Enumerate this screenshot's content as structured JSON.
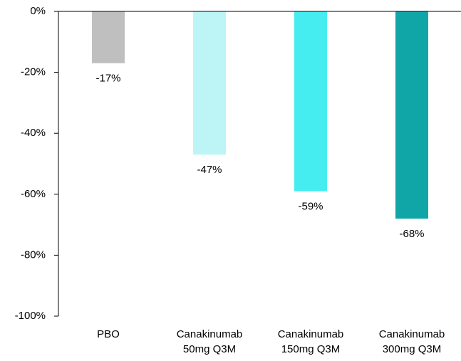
{
  "chart_data": {
    "type": "bar",
    "categories": [
      "PBO",
      "Canakinumab\n50mg Q3M",
      "Canakinumab\n150mg Q3M",
      "Canakinumab\n300mg Q3M"
    ],
    "values": [
      -17,
      -47,
      -59,
      -68
    ],
    "value_labels": [
      "-17%",
      "-47%",
      "-59%",
      "-68%"
    ],
    "colors": [
      "#bfbfbf",
      "#bdf5f7",
      "#45edf0",
      "#10a6a8"
    ],
    "ylim": [
      -100,
      0
    ],
    "yticks": [
      {
        "value": 0,
        "label": "0%"
      },
      {
        "value": -20,
        "label": "-20%"
      },
      {
        "value": -40,
        "label": "-40%"
      },
      {
        "value": -60,
        "label": "-60%"
      },
      {
        "value": -80,
        "label": "-80%"
      },
      {
        "value": -100,
        "label": "-100%"
      }
    ]
  }
}
